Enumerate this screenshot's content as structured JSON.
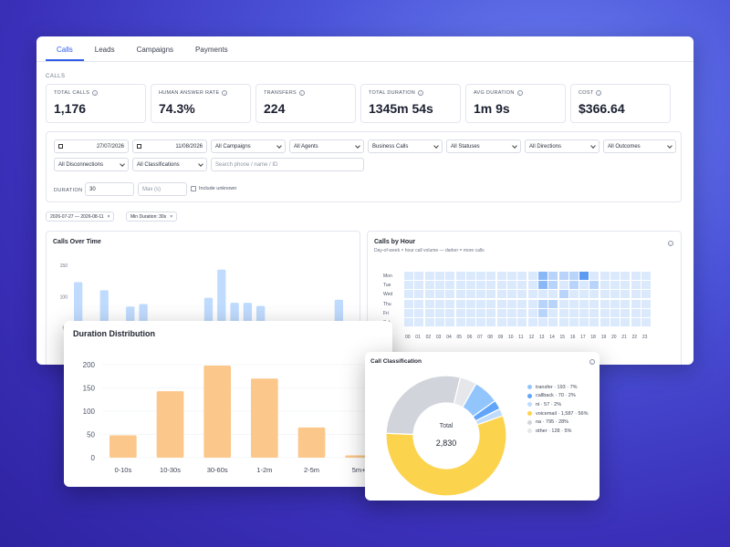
{
  "tabs": [
    {
      "label": "Calls",
      "active": true
    },
    {
      "label": "Leads",
      "active": false
    },
    {
      "label": "Campaigns",
      "active": false
    },
    {
      "label": "Payments",
      "active": false
    }
  ],
  "section_label": "CALLS",
  "kpis": [
    {
      "label": "TOTAL CALLS",
      "value": "1,176"
    },
    {
      "label": "HUMAN ANSWER RATE",
      "value": "74.3%"
    },
    {
      "label": "TRANSFERS",
      "value": "224"
    },
    {
      "label": "TOTAL DURATION",
      "value": "1345m 54s"
    },
    {
      "label": "AVG DURATION",
      "value": "1m 9s"
    },
    {
      "label": "COST",
      "value": "$366.64"
    }
  ],
  "filters": {
    "date_from": "27/07/2026",
    "date_to": "11/08/2026",
    "campaigns": "All Campaigns",
    "agents": "All Agents",
    "call_type": "Business Calls",
    "statuses": "All Statuses",
    "directions": "All Directions",
    "outcomes": "All Outcomes",
    "disconnections": "All Disconnections",
    "classifications": "All Classifications",
    "search_placeholder": "Search phone / name / ID",
    "duration_label": "DURATION",
    "duration_min": "30",
    "duration_max_placeholder": "Max (s)",
    "include_unknown": "Include unknown"
  },
  "active_chips": [
    {
      "label": "2026-07-27 — 2026-08-11",
      "close": "×"
    },
    {
      "label": "Min Duration: 30s",
      "close": "×"
    }
  ],
  "calls_over_time": {
    "title": "Calls Over Time",
    "chart_data": {
      "type": "bar",
      "yticks": [
        "150",
        "100",
        "50"
      ],
      "ylim": [
        0,
        160
      ],
      "values": [
        123,
        0,
        110,
        57,
        84,
        88,
        57,
        0,
        0,
        0,
        98,
        143,
        90,
        90,
        85,
        0,
        0,
        0,
        0,
        0,
        95
      ]
    }
  },
  "calls_by_hour": {
    "title": "Calls by Hour",
    "subtitle": "Day-of-week × hour call volume — darker = more calls",
    "rows": [
      "Mon",
      "Tue",
      "Wed",
      "Thu",
      "Fri",
      "Sat"
    ],
    "cols": [
      "00",
      "01",
      "02",
      "03",
      "04",
      "05",
      "06",
      "07",
      "08",
      "09",
      "10",
      "11",
      "12",
      "13",
      "14",
      "15",
      "16",
      "17",
      "18",
      "19",
      "20",
      "21",
      "22",
      "23"
    ],
    "intensity": [
      [
        1,
        1,
        1,
        1,
        1,
        1,
        1,
        1,
        1,
        1,
        1,
        1,
        1,
        3,
        2,
        2,
        2,
        4,
        1,
        1,
        1,
        1,
        1,
        1
      ],
      [
        1,
        1,
        1,
        1,
        1,
        1,
        1,
        1,
        1,
        1,
        1,
        1,
        1,
        3,
        2,
        1,
        2,
        1,
        2,
        1,
        1,
        1,
        1,
        1
      ],
      [
        1,
        1,
        1,
        1,
        1,
        1,
        1,
        1,
        1,
        1,
        1,
        1,
        1,
        1,
        1,
        2,
        1,
        1,
        1,
        1,
        1,
        1,
        1,
        1
      ],
      [
        1,
        1,
        1,
        1,
        1,
        1,
        1,
        1,
        1,
        1,
        1,
        1,
        1,
        2,
        2,
        1,
        1,
        1,
        1,
        1,
        1,
        1,
        1,
        1
      ],
      [
        1,
        1,
        1,
        1,
        1,
        1,
        1,
        1,
        1,
        1,
        1,
        1,
        1,
        2,
        1,
        1,
        1,
        1,
        1,
        1,
        1,
        1,
        1,
        1
      ],
      [
        1,
        1,
        1,
        1,
        1,
        1,
        1,
        1,
        1,
        1,
        1,
        1,
        1,
        1,
        1,
        1,
        1,
        1,
        1,
        1,
        1,
        1,
        1,
        1
      ]
    ]
  },
  "duration_distribution": {
    "title": "Duration Distribution",
    "chart_data": {
      "type": "bar",
      "categories": [
        "0-10s",
        "10-30s",
        "30-60s",
        "1-2m",
        "2-5m",
        "5m+"
      ],
      "values": [
        48,
        143,
        198,
        170,
        65,
        5
      ],
      "yticks": [
        "0",
        "50",
        "100",
        "150",
        "200"
      ],
      "ylim": [
        0,
        200
      ]
    }
  },
  "call_classification": {
    "title": "Call Classification",
    "center_label": "Total",
    "center_value": "2,830",
    "chart_data": {
      "type": "pie",
      "slices": [
        {
          "label": "transfer · 193 · 7%",
          "value": 193,
          "color": "#93c5fd"
        },
        {
          "label": "callback · 70 · 2%",
          "value": 70,
          "color": "#60a5fa"
        },
        {
          "label": "ni · 57 · 2%",
          "value": 57,
          "color": "#bfdbfe"
        },
        {
          "label": "voicemail · 1,587 · 56%",
          "value": 1587,
          "color": "#fcd34d"
        },
        {
          "label": "na · 795 · 28%",
          "value": 795,
          "color": "#d1d5db"
        },
        {
          "label": "other · 128 · 5%",
          "value": 128,
          "color": "#e5e7eb"
        }
      ]
    }
  }
}
